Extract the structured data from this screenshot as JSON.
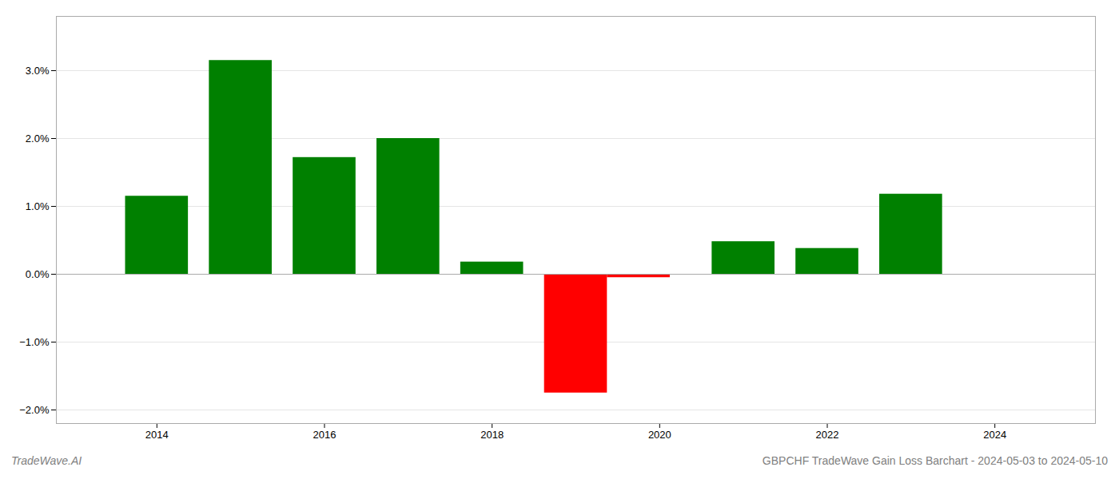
{
  "chart_data": {
    "type": "bar",
    "title": "GBPCHF TradeWave Gain Loss Barchart - 2024-05-03 to 2024-05-10",
    "annotations": [
      "TradeWave.AI"
    ],
    "x": [
      2014,
      2015,
      2016,
      2017,
      2018,
      2019,
      2019.75,
      2021,
      2022,
      2023
    ],
    "values": [
      0.0115,
      0.0315,
      0.0172,
      0.02,
      0.0018,
      -0.0175,
      -0.0005,
      0.0048,
      0.0038,
      0.0118
    ],
    "colors": [
      "#008000",
      "#008000",
      "#008000",
      "#008000",
      "#008000",
      "#ff0000",
      "#ff0000",
      "#008000",
      "#008000",
      "#008000"
    ],
    "xlim": [
      2012.8,
      2025.2
    ],
    "xticks": [
      2014,
      2016,
      2018,
      2020,
      2022,
      2024
    ],
    "ylim": [
      -0.022,
      0.038
    ],
    "yticks": [
      {
        "value": -0.02,
        "label": "−2.0%"
      },
      {
        "value": -0.01,
        "label": "−1.0%"
      },
      {
        "value": 0.0,
        "label": "0.0%"
      },
      {
        "value": 0.01,
        "label": "1.0%"
      },
      {
        "value": 0.02,
        "label": "2.0%"
      },
      {
        "value": 0.03,
        "label": "3.0%"
      }
    ],
    "grid": true
  }
}
